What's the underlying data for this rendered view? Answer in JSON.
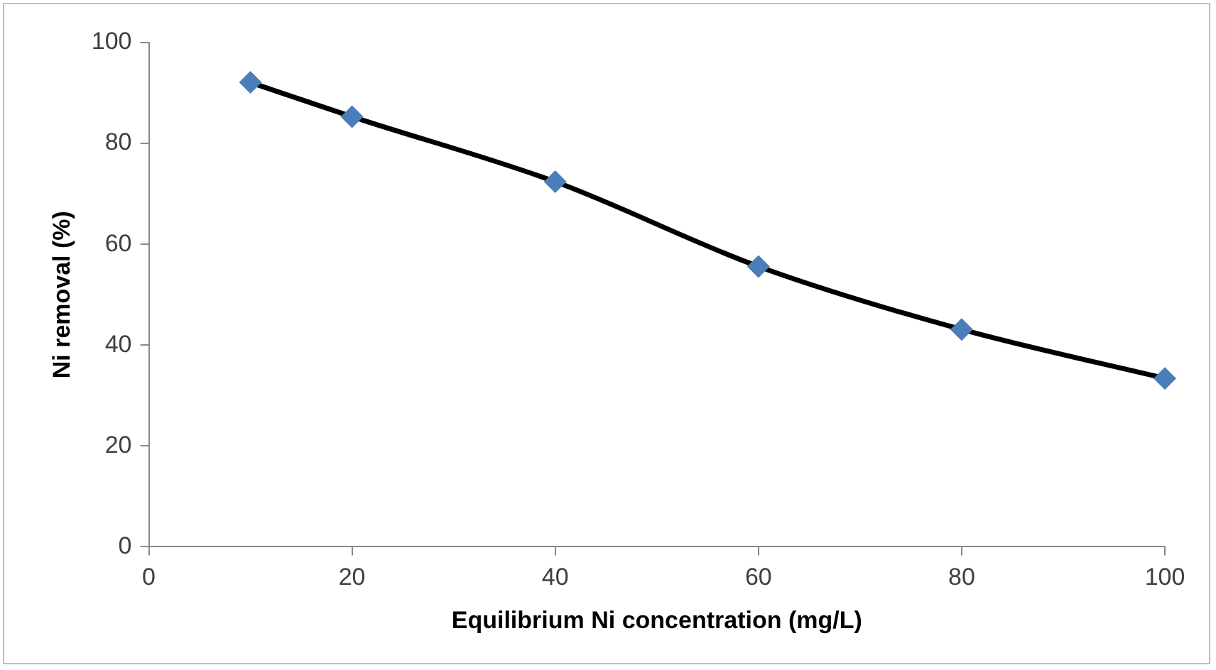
{
  "chart_data": {
    "type": "line",
    "xlabel": "Equilibrium Ni concentration (mg/L)",
    "ylabel": "Ni removal (%)",
    "x": [
      10,
      20,
      40,
      60,
      80,
      100
    ],
    "series": [
      {
        "color": "#4a7ebb",
        "values": [
          92.1,
          85.3,
          72.4,
          55.6,
          43.1,
          33.4
        ]
      }
    ],
    "xlim": [
      0,
      100
    ],
    "xticks": [
      0,
      20,
      40,
      60,
      80,
      100
    ],
    "ylim": [
      0,
      100
    ],
    "yticks": [
      0,
      20,
      40,
      60,
      80,
      100
    ],
    "grid": false,
    "legend": false,
    "marker": "diamond",
    "line_style": "solid"
  }
}
